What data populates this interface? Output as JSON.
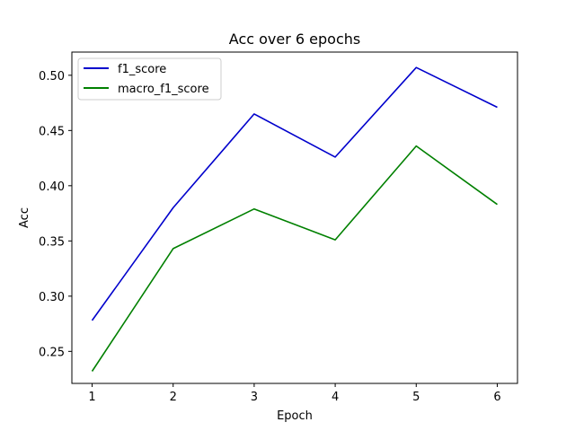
{
  "chart_data": {
    "type": "line",
    "title": "Acc over 6 epochs",
    "xlabel": "Epoch",
    "ylabel": "Acc",
    "x": [
      1,
      2,
      3,
      4,
      5,
      6
    ],
    "xlim": [
      0.75,
      6.25
    ],
    "ylim": [
      0.221,
      0.521
    ],
    "xticks": [
      1,
      2,
      3,
      4,
      5,
      6
    ],
    "yticks": [
      0.25,
      0.3,
      0.35,
      0.4,
      0.45,
      0.5
    ],
    "ytick_labels": [
      "0.25",
      "0.30",
      "0.35",
      "0.40",
      "0.45",
      "0.50"
    ],
    "grid": false,
    "legend_position": "top-left",
    "series": [
      {
        "name": "f1_score",
        "color": "#0000cc",
        "values": [
          0.278,
          0.38,
          0.465,
          0.426,
          0.507,
          0.471
        ]
      },
      {
        "name": "macro_f1_score",
        "color": "#008000",
        "values": [
          0.232,
          0.343,
          0.379,
          0.351,
          0.436,
          0.383
        ]
      }
    ]
  }
}
